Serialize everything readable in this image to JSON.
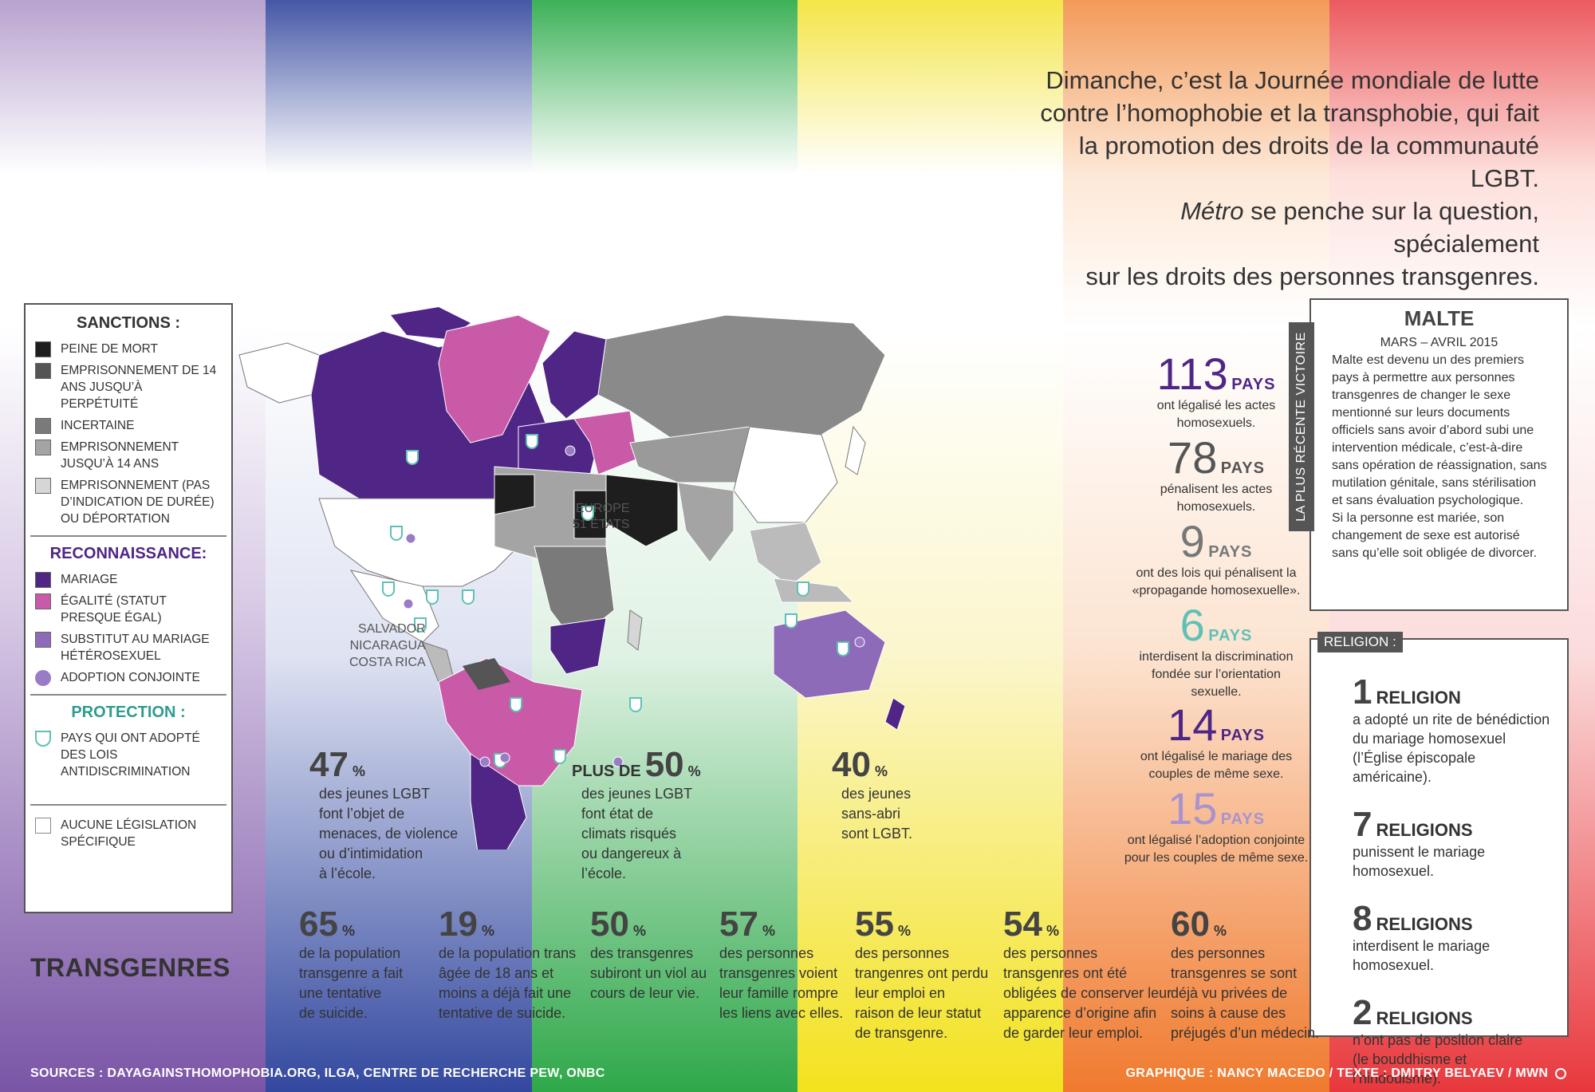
{
  "intro": {
    "line1": "Dimanche, c’est la Journée mondiale de lutte",
    "line2": "contre l’homophobie et la transphobie, qui fait",
    "line3": "la promotion des droits de la communauté LGBT.",
    "line4a": "Métro",
    "line4b": " se penche sur la question, spécialement",
    "line5": "sur les droits des personnes transgenres."
  },
  "legend": {
    "sanctions_title": "SANCTIONS :",
    "sanctions": [
      {
        "label": "PEINE DE MORT",
        "color": "#1e1e1e"
      },
      {
        "label": "EMPRISONNEMENT DE 14 ANS JUSQU’À PERPÉTUITÉ",
        "color": "#555555"
      },
      {
        "label": "INCERTAINE",
        "color": "#7a7a7a"
      },
      {
        "label": "EMPRISONNEMENT JUSQU’À 14 ANS",
        "color": "#a4a4a4"
      },
      {
        "label": "EMPRISONNEMENT (PAS D’INDICATION DE DURÉE) OU DÉPORTATION",
        "color": "#d6d6d6"
      }
    ],
    "recognition_title": "RECONNAISSANCE:",
    "recognition": [
      {
        "label": "MARIAGE",
        "color": "#4f2585"
      },
      {
        "label": "ÉGALITÉ (STATUT PRESQUE ÉGAL)",
        "color": "#c95aa8"
      },
      {
        "label": "SUBSTITUT AU MARIAGE HÉTÉROSEXUEL",
        "color": "#8d6bb8"
      },
      {
        "label": "ADOPTION CONJOINTE",
        "color": "#9a7cc6"
      }
    ],
    "protection_title": "PROTECTION :",
    "protection": [
      {
        "label": "PAYS QUI ONT ADOPTÉ DES LOIS ANTIDISCRIMINATION",
        "color": "#5fc1b5"
      }
    ],
    "none_label": "AUCUNE LÉGISLATION SPÉCIFIQUE"
  },
  "map_labels": {
    "europe": "EUROPE",
    "europe_states": "51 ÉTATS",
    "salvador": "SALVADOR",
    "nicaragua": "NICARAGUA",
    "costa_rica": "COSTA RICA"
  },
  "world_stats": [
    {
      "num": "113",
      "unit": "PAYS",
      "text1": "ont légalisé les actes",
      "text2": "homosexuels.",
      "color": "#4f2585"
    },
    {
      "num": "78",
      "unit": "PAYS",
      "text1": "pénalisent les actes",
      "text2": "homosexuels.",
      "color": "#555555"
    },
    {
      "num": "9",
      "unit": "PAYS",
      "text1": "ont des lois qui pénalisent la",
      "text2": "«propagande homosexuelle».",
      "color": "#777777"
    },
    {
      "num": "6",
      "unit": "PAYS",
      "text1": "interdisent la discrimination",
      "text2": "fondée sur l’orientation",
      "text3": "sexuelle.",
      "color": "#5fc1b5"
    },
    {
      "num": "14",
      "unit": "PAYS",
      "text1": "ont légalisé le mariage des",
      "text2": "couples de même sexe.",
      "color": "#4f2585"
    },
    {
      "num": "15",
      "unit": "PAYS",
      "text1": "ont légalisé l’adoption conjointe",
      "text2": "pour les couples de même sexe.",
      "color": "#a993cf"
    }
  ],
  "malta": {
    "band": "LA PLUS RÉCENTE VICTOIRE",
    "title": "MALTE",
    "date": "MARS – AVRIL 2015",
    "lines": [
      "Malte est devenu un des premiers",
      "pays à permettre aux personnes",
      "transgenres de changer le sexe",
      "mentionné sur leurs documents",
      "officiels sans avoir d’abord subi une",
      "intervention médicale, c’est-à-dire",
      "sans opération de réassignation, sans",
      "mutilation génitale, sans stérilisation",
      "et sans évaluation psychologique.",
      "Si la personne est mariée, son",
      "changement de sexe est autorisé",
      "sans qu’elle soit obligée de divorcer."
    ]
  },
  "religion": {
    "title": "RELIGION :",
    "items": [
      {
        "num": "1",
        "unit": "RELIGION",
        "l1": "a adopté un rite de bénédiction",
        "l2": "du mariage homosexuel",
        "l3": "(l’Église épiscopale américaine)."
      },
      {
        "num": "7",
        "unit": "RELIGIONS",
        "l1": "punissent le mariage",
        "l2": "homosexuel.",
        "l3": ""
      },
      {
        "num": "8",
        "unit": "RELIGIONS",
        "l1": "interdisent le mariage",
        "l2": "homosexuel.",
        "l3": ""
      },
      {
        "num": "2",
        "unit": "RELIGIONS",
        "l1": "n’ont pas de position claire",
        "l2": "(le bouddhisme et l’hindouisme).",
        "l3": ""
      }
    ]
  },
  "youth": [
    {
      "pre": "",
      "num": "47",
      "lines": [
        "des jeunes LGBT",
        "font l’objet de",
        "menaces, de violence",
        "ou d’intimidation",
        "à l’école."
      ]
    },
    {
      "pre": "PLUS DE",
      "num": "50",
      "lines": [
        "des jeunes LGBT",
        "font état de",
        "climats risqués",
        "ou dangereux à",
        "l’école."
      ]
    },
    {
      "pre": "",
      "num": "40",
      "lines": [
        "des jeunes",
        "sans-abri",
        "sont LGBT."
      ]
    }
  ],
  "transgenres_title": "TRANSGENRES",
  "trans_stats": [
    {
      "num": "65",
      "lines": [
        "de la population",
        "transgenre a fait",
        "une tentative",
        "de suicide."
      ]
    },
    {
      "num": "19",
      "lines": [
        "de la population trans",
        "âgée de 18 ans et",
        "moins a déjà fait une",
        "tentative de suicide."
      ]
    },
    {
      "num": "50",
      "lines": [
        "des transgenres",
        "subiront un viol au",
        "cours de leur vie."
      ]
    },
    {
      "num": "57",
      "lines": [
        "des personnes",
        "transgenres voient",
        "leur famille rompre",
        "les liens avec elles."
      ]
    },
    {
      "num": "55",
      "lines": [
        "des personnes",
        "trangenres ont perdu",
        "leur emploi en",
        "raison de leur statut",
        "de transgenre."
      ]
    },
    {
      "num": "54",
      "lines": [
        "des personnes",
        "transgenres ont été",
        "obligées de conserver leur",
        "apparence d’origine afin",
        "de garder leur emploi."
      ]
    },
    {
      "num": "60",
      "lines": [
        "des personnes",
        "transgenres se sont",
        "déjà vu privées de",
        "soins à cause des",
        "préjugés d’un médecin."
      ]
    }
  ],
  "percent_sign": "%",
  "footer": {
    "sources": "SOURCES : DAYAGAINSTHOMOPHOBIA.ORG, ILGA, CENTRE DE RECHERCHE PEW, ONBC",
    "credits": "GRAPHIQUE : NANCY MACEDO / TEXTE : DMITRY BELYAEV / MWN"
  },
  "colors": {
    "stripes": [
      "#6b3d95",
      "#2b3f9a",
      "#2fa84a",
      "#f3e21e",
      "#f07a2e",
      "#e8383d"
    ],
    "accent_teal": "#5fc1b5",
    "purple": "#4f2585",
    "pink": "#c95aa8"
  }
}
